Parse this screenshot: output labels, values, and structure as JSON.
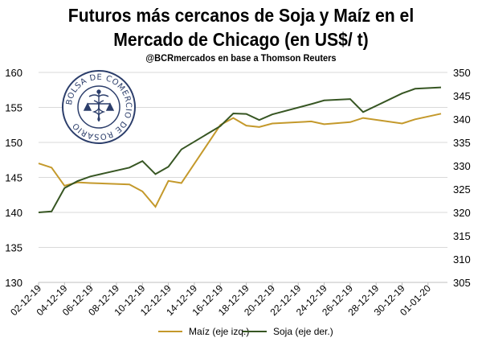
{
  "header": {
    "title_line1": "Futuros más cercanos de Soja y Maíz en el",
    "title_line2": "Mercado de Chicago (en US$/ t)",
    "subtitle": "@BCRmercados en base a Thomson Reuters"
  },
  "logo": {
    "text": "BOLSA DE COMERCIO DE ROSARIO"
  },
  "colors": {
    "maiz": "#c4992b",
    "soja": "#375623",
    "grid": "#d9d9d9"
  },
  "chart_data": {
    "type": "line",
    "title": "Futuros más cercanos de Soja y Maíz en el Mercado de Chicago (en US$/ t)",
    "subtitle": "@BCRmercados en base a Thomson Reuters",
    "x_dates": [
      "02-12-19",
      "03-12-19",
      "04-12-19",
      "05-12-19",
      "06-12-19",
      "09-12-19",
      "10-12-19",
      "11-12-19",
      "12-12-19",
      "13-12-19",
      "16-12-19",
      "17-12-19",
      "18-12-19",
      "19-12-19",
      "20-12-19",
      "23-12-19",
      "24-12-19",
      "26-12-19",
      "27-12-19",
      "30-12-19",
      "31-12-19",
      "02-01-20"
    ],
    "x_tick_labels": [
      "02-12-19",
      "04-12-19",
      "06-12-19",
      "08-12-19",
      "10-12-19",
      "12-12-19",
      "14-12-19",
      "16-12-19",
      "18-12-19",
      "20-12-19",
      "22-12-19",
      "24-12-19",
      "26-12-19",
      "28-12-19",
      "30-12-19",
      "01-01-20"
    ],
    "y_left": {
      "label": "Maíz (eje izq.)",
      "ticks": [
        "130",
        "135",
        "140",
        "145",
        "150",
        "155",
        "160"
      ],
      "range": [
        130,
        160
      ]
    },
    "y_right": {
      "label": "Soja (eje der.)",
      "ticks": [
        "305",
        "310",
        "315",
        "320",
        "325",
        "330",
        "335",
        "340",
        "345",
        "350"
      ],
      "range": [
        305,
        350
      ]
    },
    "series": [
      {
        "name": "Maíz (eje izq.)",
        "axis": "left",
        "values": [
          147.0,
          146.4,
          143.8,
          144.3,
          144.2,
          144.0,
          143.0,
          140.8,
          144.5,
          144.2,
          152.5,
          153.5,
          152.4,
          152.2,
          152.7,
          153.0,
          152.6,
          152.9,
          153.5,
          152.7,
          153.3,
          154.1
        ]
      },
      {
        "name": "Soja (eje der.)",
        "axis": "right",
        "values": [
          320.0,
          320.2,
          325.2,
          326.7,
          327.7,
          329.6,
          331.0,
          328.2,
          329.8,
          333.5,
          338.5,
          341.2,
          341.1,
          339.8,
          341.0,
          343.2,
          344.0,
          344.3,
          341.5,
          345.5,
          346.5,
          346.8
        ]
      }
    ],
    "grid": true,
    "legend_position": "bottom"
  },
  "legend": {
    "maiz_label": "Maíz (eje izq.)",
    "soja_label": "Soja (eje der.)"
  }
}
